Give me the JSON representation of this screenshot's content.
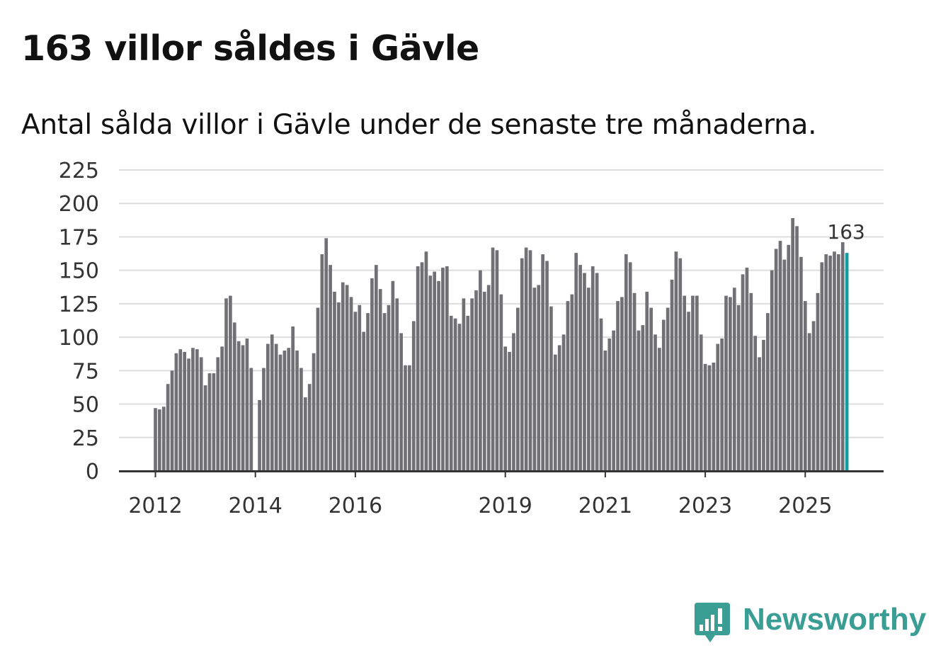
{
  "title": "163 villor såldes i Gävle",
  "subtitle": "Antal sålda villor i Gävle under de senaste tre månaderna.",
  "brand": {
    "name": "Newsworthy",
    "color": "#3a9e94",
    "icon": "newsworthy-logo-icon"
  },
  "colors": {
    "bar": "#717075",
    "highlight": "#169c9f",
    "grid": "#dddddd",
    "axis": "#333333"
  },
  "chart_data": {
    "type": "bar",
    "title": "163 villor såldes i Gävle",
    "subtitle": "Antal sålda villor i Gävle under de senaste tre månaderna.",
    "xlabel": "",
    "ylabel": "",
    "ylim": [
      0,
      225
    ],
    "yticks": [
      0,
      25,
      50,
      75,
      100,
      125,
      150,
      175,
      200,
      225
    ],
    "grid": true,
    "x_start": 2012.0,
    "x_step": 0.0833333,
    "xticks": [
      {
        "label": "2012",
        "x": 2012
      },
      {
        "label": "2014",
        "x": 2014
      },
      {
        "label": "2016",
        "x": 2016
      },
      {
        "label": "2019",
        "x": 2019
      },
      {
        "label": "2021",
        "x": 2021
      },
      {
        "label": "2023",
        "x": 2023
      },
      {
        "label": "2025",
        "x": 2025
      }
    ],
    "values": [
      47,
      46,
      48,
      65,
      75,
      88,
      91,
      89,
      84,
      92,
      91,
      85,
      64,
      73,
      73,
      85,
      93,
      129,
      131,
      111,
      97,
      94,
      99,
      77,
      null,
      53,
      77,
      95,
      102,
      95,
      87,
      90,
      92,
      108,
      90,
      77,
      55,
      65,
      88,
      122,
      162,
      174,
      154,
      134,
      126,
      141,
      139,
      130,
      119,
      124,
      104,
      118,
      144,
      154,
      136,
      118,
      124,
      142,
      129,
      103,
      79,
      79,
      112,
      153,
      156,
      164,
      146,
      149,
      142,
      152,
      153,
      116,
      114,
      110,
      129,
      116,
      129,
      135,
      150,
      134,
      139,
      167,
      165,
      132,
      93,
      89,
      103,
      122,
      159,
      167,
      165,
      137,
      139,
      162,
      157,
      123,
      87,
      94,
      102,
      127,
      132,
      163,
      154,
      148,
      137,
      153,
      148,
      114,
      90,
      99,
      105,
      127,
      130,
      162,
      156,
      133,
      105,
      109,
      134,
      122,
      102,
      92,
      113,
      122,
      143,
      164,
      159,
      131,
      119,
      131,
      131,
      102,
      80,
      79,
      81,
      95,
      99,
      131,
      130,
      137,
      124,
      147,
      152,
      133,
      101,
      85,
      98,
      118,
      150,
      166,
      172,
      158,
      169,
      189,
      183,
      160,
      127,
      103,
      112,
      133,
      156,
      162,
      161,
      164,
      162,
      171,
      163
    ],
    "highlight_index": 166,
    "annotation": {
      "label": "163",
      "value": 163
    }
  }
}
